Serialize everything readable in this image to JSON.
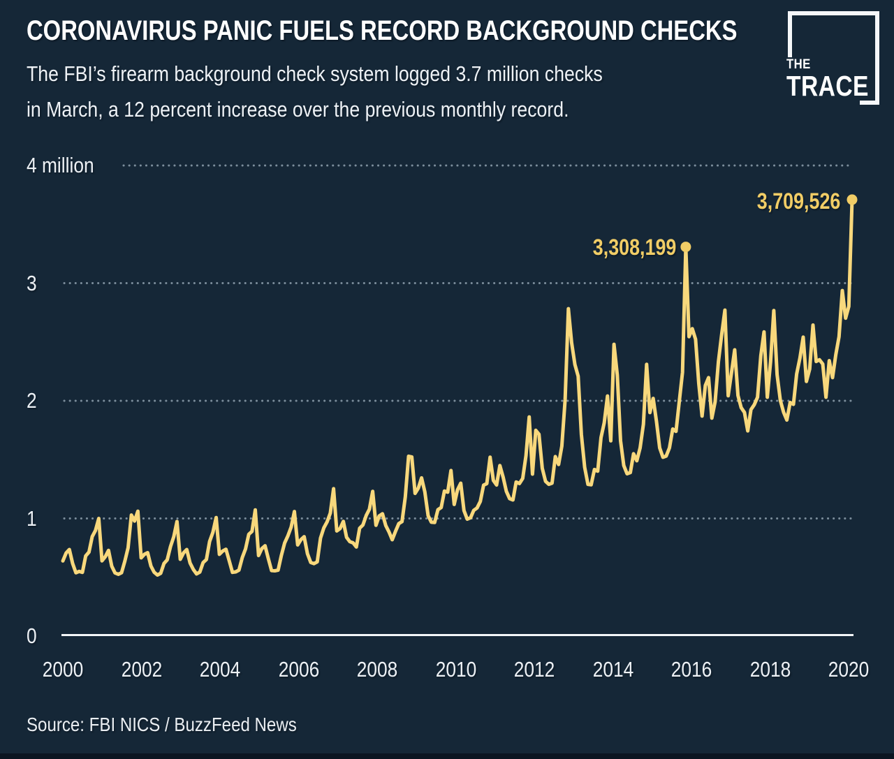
{
  "header": {
    "title": "CORONAVIRUS PANIC FUELS RECORD BACKGROUND CHECKS",
    "subtitle_line1": "The FBI’s firearm background check system logged 3.7 million checks",
    "subtitle_line2": "in March, a 12 percent increase over the previous monthly record."
  },
  "logo": {
    "line1": "THE",
    "line2": "TRACE"
  },
  "source": "Source: FBI NICS / BuzzFeed News",
  "colors": {
    "background": "#152737",
    "line": "#F8D87C",
    "annotation": "#F1CD66",
    "grid": "#8FA0AE",
    "axis": "#F3F6F8",
    "text": "#EDF1F5",
    "footer_bar": "#0B1521"
  },
  "chart_data": {
    "type": "line",
    "title": "CORONAVIRUS PANIC FUELS RECORD BACKGROUND CHECKS",
    "unit": "background checks per month (millions)",
    "frequency": "monthly",
    "x_start": "2000-01",
    "x_end": "2020-03",
    "ylim": [
      0,
      4
    ],
    "grid": "dotted horizontal",
    "legend": "none",
    "y_ticks": [
      {
        "label": "0",
        "value": 0
      },
      {
        "label": "1",
        "value": 1
      },
      {
        "label": "2",
        "value": 2
      },
      {
        "label": "3",
        "value": 3
      },
      {
        "label": "4 million",
        "value": 4
      }
    ],
    "x_ticks": [
      "2000",
      "2002",
      "2004",
      "2006",
      "2008",
      "2010",
      "2012",
      "2014",
      "2016",
      "2018",
      "2020"
    ],
    "series": [
      {
        "name": "FBI NICS firearm background checks (millions)",
        "values": [
          0.639,
          0.707,
          0.736,
          0.617,
          0.538,
          0.55,
          0.542,
          0.682,
          0.714,
          0.845,
          0.898,
          1.0,
          0.64,
          0.675,
          0.729,
          0.594,
          0.537,
          0.525,
          0.538,
          0.636,
          0.751,
          1.029,
          0.978,
          1.062,
          0.665,
          0.695,
          0.709,
          0.596,
          0.543,
          0.519,
          0.534,
          0.618,
          0.648,
          0.76,
          0.845,
          0.974,
          0.653,
          0.708,
          0.736,
          0.622,
          0.567,
          0.529,
          0.544,
          0.625,
          0.651,
          0.804,
          0.882,
          1.008,
          0.695,
          0.723,
          0.738,
          0.642,
          0.542,
          0.546,
          0.561,
          0.666,
          0.74,
          0.865,
          0.89,
          1.073,
          0.685,
          0.743,
          0.768,
          0.658,
          0.557,
          0.555,
          0.561,
          0.687,
          0.791,
          0.852,
          0.927,
          1.059,
          0.775,
          0.82,
          0.845,
          0.7,
          0.626,
          0.616,
          0.631,
          0.833,
          0.919,
          0.97,
          1.045,
          1.253,
          0.894,
          0.914,
          0.975,
          0.84,
          0.803,
          0.792,
          0.757,
          0.917,
          0.944,
          1.025,
          1.079,
          1.23,
          0.942,
          1.021,
          1.04,
          0.94,
          0.886,
          0.819,
          0.891,
          0.956,
          0.973,
          1.183,
          1.529,
          1.523,
          1.213,
          1.259,
          1.345,
          1.225,
          1.023,
          0.968,
          0.966,
          1.074,
          1.093,
          1.233,
          1.223,
          1.407,
          1.119,
          1.243,
          1.3,
          1.067,
          0.994,
          1.006,
          1.069,
          1.089,
          1.145,
          1.283,
          1.296,
          1.521,
          1.323,
          1.284,
          1.45,
          1.351,
          1.23,
          1.168,
          1.157,
          1.31,
          1.297,
          1.34,
          1.534,
          1.863,
          1.377,
          1.749,
          1.715,
          1.427,
          1.316,
          1.29,
          1.3,
          1.526,
          1.459,
          1.614,
          2.006,
          2.783,
          2.495,
          2.309,
          2.209,
          1.714,
          1.435,
          1.29,
          1.286,
          1.416,
          1.402,
          1.687,
          1.813,
          2.041,
          1.66,
          2.48,
          2.22,
          1.66,
          1.45,
          1.38,
          1.39,
          1.55,
          1.49,
          1.6,
          1.8,
          2.31,
          1.9,
          2.02,
          1.83,
          1.6,
          1.52,
          1.53,
          1.6,
          1.76,
          1.74,
          1.99,
          2.243,
          3.308,
          2.545,
          2.613,
          2.523,
          2.146,
          1.87,
          2.131,
          2.197,
          1.853,
          1.992,
          2.333,
          2.561,
          2.771,
          2.043,
          2.234,
          2.433,
          2.045,
          1.942,
          1.901,
          1.744,
          1.925,
          1.967,
          2.03,
          2.382,
          2.586,
          2.03,
          2.333,
          2.767,
          2.223,
          2.002,
          1.903,
          1.836,
          1.985,
          1.97,
          2.227,
          2.363,
          2.541,
          2.165,
          2.27,
          2.644,
          2.334,
          2.349,
          2.312,
          2.03,
          2.341,
          2.197,
          2.393,
          2.545,
          2.937,
          2.702,
          2.802,
          3.71
        ]
      }
    ],
    "annotations": [
      {
        "label": "3,308,199",
        "month": "2015-12",
        "value_millions": 3.308
      },
      {
        "label": "3,709,526",
        "month": "2020-03",
        "value_millions": 3.71
      }
    ]
  }
}
